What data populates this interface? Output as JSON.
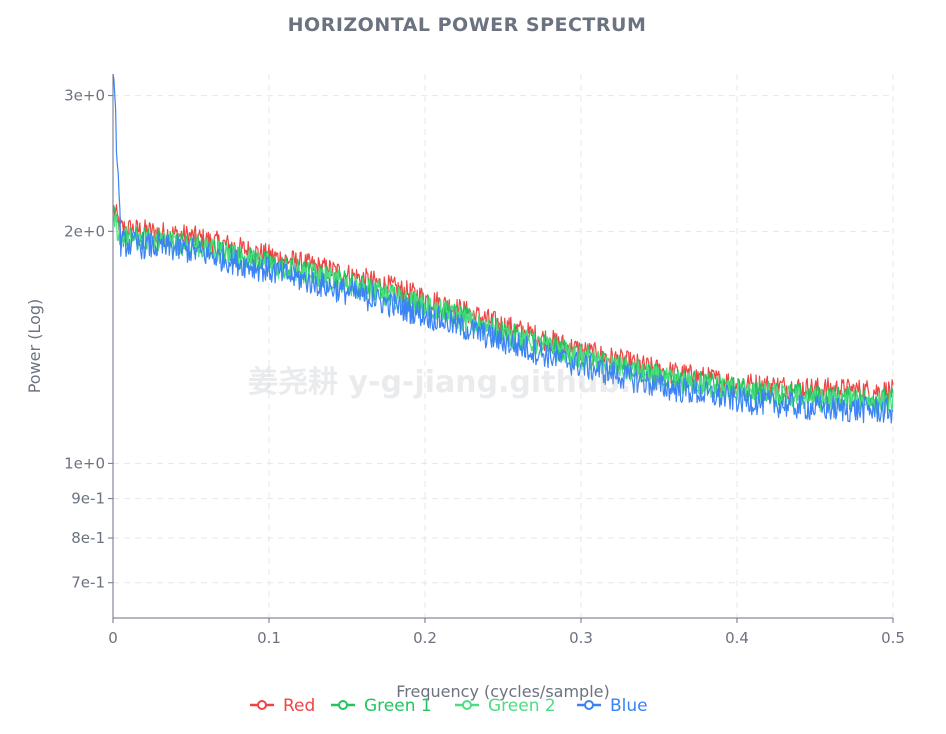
{
  "watermark": "姜尧耕 y-g-jiang.github.io",
  "chart_data": {
    "type": "line",
    "title": "HORIZONTAL POWER SPECTRUM",
    "xlabel": "Frequency (cycles/sample)",
    "ylabel": "Power (Log)",
    "yscale": "log",
    "xlim": [
      0,
      0.5
    ],
    "ylim": [
      0.63,
      3.2
    ],
    "x_ticks": [
      0,
      0.1,
      0.2,
      0.3,
      0.4,
      0.5
    ],
    "x_tick_labels": [
      "0",
      "0.1",
      "0.2",
      "0.3",
      "0.4",
      "0.5"
    ],
    "y_ticks": [
      3,
      2,
      1,
      0.9,
      0.8,
      0.7
    ],
    "y_tick_labels": [
      "3e+0",
      "2e+0",
      "1e+0",
      "9e-1",
      "8e-1",
      "7e-1"
    ],
    "grid": true,
    "legend_position": "bottom-center",
    "series": [
      {
        "name": "Red",
        "color": "#ef4444",
        "noise": 0.022,
        "x": [
          0,
          0.005,
          0.05,
          0.1,
          0.15,
          0.2,
          0.25,
          0.3,
          0.35,
          0.4,
          0.45,
          0.5
        ],
        "values": [
          2.15,
          2.02,
          1.97,
          1.86,
          1.76,
          1.64,
          1.51,
          1.4,
          1.32,
          1.27,
          1.25,
          1.24
        ]
      },
      {
        "name": "Green 1",
        "color": "#22c55e",
        "noise": 0.022,
        "x": [
          0,
          0.005,
          0.05,
          0.1,
          0.15,
          0.2,
          0.25,
          0.3,
          0.35,
          0.4,
          0.45,
          0.5
        ],
        "values": [
          2.1,
          1.97,
          1.93,
          1.82,
          1.72,
          1.61,
          1.48,
          1.38,
          1.3,
          1.25,
          1.22,
          1.21
        ]
      },
      {
        "name": "Green 2",
        "color": "#4ade80",
        "noise": 0.022,
        "x": [
          0,
          0.005,
          0.05,
          0.1,
          0.15,
          0.2,
          0.25,
          0.3,
          0.35,
          0.4,
          0.45,
          0.5
        ],
        "values": [
          2.09,
          1.96,
          1.92,
          1.81,
          1.71,
          1.6,
          1.47,
          1.37,
          1.29,
          1.24,
          1.21,
          1.2
        ]
      },
      {
        "name": "Blue",
        "color": "#3b82f6",
        "noise": 0.025,
        "x": [
          0,
          0.005,
          0.05,
          0.1,
          0.15,
          0.2,
          0.25,
          0.3,
          0.35,
          0.4,
          0.45,
          0.5
        ],
        "values": [
          3.2,
          1.93,
          1.89,
          1.78,
          1.67,
          1.56,
          1.44,
          1.34,
          1.26,
          1.21,
          1.18,
          1.17
        ]
      }
    ]
  }
}
